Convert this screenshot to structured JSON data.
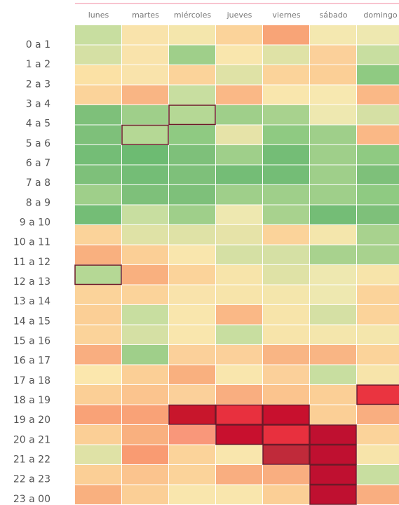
{
  "chart_data": {
    "type": "heatmap",
    "columns": [
      "lunes",
      "martes",
      "miércoles",
      "jueves",
      "viernes",
      "sábado",
      "domingo"
    ],
    "rows": [
      "0 a 1",
      "1 a 2",
      "2 a 3",
      "3 a 4",
      "4 a 5",
      "5 a 6",
      "6 a 7",
      "7 a 8",
      "8 a 9",
      "9 a 10",
      "10 a 11",
      "11 a 12",
      "12 a 13",
      "13 a 14",
      "14 a 15",
      "15 a 16",
      "16 a 17",
      "17 a 18",
      "18 a 19",
      "19 a 20",
      "20 a 21",
      "21 a 22",
      "22 a 23",
      "23 a 00"
    ],
    "cell_colors": [
      [
        "#c8dea0",
        "#f9e3ab",
        "#f4e6ac",
        "#fbd39a",
        "#f8a477",
        "#f4e8b0",
        "#eee8b0"
      ],
      [
        "#d5e0a4",
        "#f9e3ab",
        "#9fcf8a",
        "#f9e6ad",
        "#dfe2a6",
        "#fbd09a",
        "#c8dea0"
      ],
      [
        "#fbe1a5",
        "#f9e3ab",
        "#fbd39a",
        "#dfe2a6",
        "#fbd39a",
        "#fbcf96",
        "#8fca82"
      ],
      [
        "#fbd39a",
        "#f9b584",
        "#c8dea0",
        "#fab886",
        "#f9e6ad",
        "#f7e8b0",
        "#fab886"
      ],
      [
        "#7ec07a",
        "#9fcf8a",
        "#b5d895",
        "#9fcf8a",
        "#a8d28e",
        "#eee8b0",
        "#d5e0a4"
      ],
      [
        "#7ec07a",
        "#b5d895",
        "#8fca82",
        "#e6e3a8",
        "#8fca82",
        "#9fcf8a",
        "#fab886"
      ],
      [
        "#74bd76",
        "#6dbb72",
        "#7ec07a",
        "#9fcf8a",
        "#74bd76",
        "#9fcf8a",
        "#8fca82"
      ],
      [
        "#7ec07a",
        "#74bd76",
        "#7ec07a",
        "#74bd76",
        "#74bd76",
        "#9fcf8a",
        "#7ec07a"
      ],
      [
        "#9fcf8a",
        "#7ec07a",
        "#7ec07a",
        "#9fcf8a",
        "#9fcf8a",
        "#9fcf8a",
        "#8fca82"
      ],
      [
        "#74bd76",
        "#c8dea0",
        "#9fcf8a",
        "#eee8b0",
        "#a8d28e",
        "#74bd76",
        "#7ec07a"
      ],
      [
        "#fbd39a",
        "#dfe2a6",
        "#dfe2a6",
        "#e6e3a8",
        "#fbd39a",
        "#f4e6ac",
        "#a8d28e"
      ],
      [
        "#f9b07f",
        "#fbcf96",
        "#f9e6ad",
        "#d5e0a4",
        "#d5e0a4",
        "#a8d28e",
        "#a8d28e"
      ],
      [
        "#b5d895",
        "#f9b07f",
        "#fbd39a",
        "#f7e4aa",
        "#dfe2a6",
        "#eee8b0",
        "#f7e4aa"
      ],
      [
        "#fbd39a",
        "#fbd39a",
        "#f9e3ab",
        "#f7e4aa",
        "#f4e6ac",
        "#eee8b0",
        "#fbd39a"
      ],
      [
        "#fbcf96",
        "#c8dea0",
        "#f9e6ad",
        "#fab886",
        "#f7e4aa",
        "#d5e0a4",
        "#fbd39a"
      ],
      [
        "#fbd39a",
        "#d5e0a4",
        "#f9e6ad",
        "#c8dea0",
        "#f7e4aa",
        "#f4e6ac",
        "#f4e6ac"
      ],
      [
        "#f9ae80",
        "#9fcf8a",
        "#fbd09a",
        "#fbd09a",
        "#f9b584",
        "#f9b584",
        "#fbd39a"
      ],
      [
        "#fbe7ad",
        "#fbcf96",
        "#f9b07f",
        "#f9e6ad",
        "#fbd09a",
        "#c8dea0",
        "#f7e4aa"
      ],
      [
        "#fbcf96",
        "#fbc48e",
        "#fbd09a",
        "#f9ae80",
        "#fbc48e",
        "#fbcf96",
        "#ea3440"
      ],
      [
        "#f9a277",
        "#f9a277",
        "#c8162c",
        "#e8303e",
        "#c8102e",
        "#fbcf96",
        "#f9ae80"
      ],
      [
        "#fbcf96",
        "#f9b07f",
        "#f9977a",
        "#c8102e",
        "#e8303e",
        "#bf1030",
        "#fbd39a"
      ],
      [
        "#dfe2a6",
        "#f99b72",
        "#fbd39a",
        "#f9e6ad",
        "#c02a3a",
        "#bf1030",
        "#f7e4aa"
      ],
      [
        "#fbcf96",
        "#fbc48e",
        "#fbd39a",
        "#f9ae80",
        "#f9ae80",
        "#bf1030",
        "#c8dea0"
      ],
      [
        "#f9b07f",
        "#fbcf96",
        "#f9e6ad",
        "#f9e6ad",
        "#fbcf96",
        "#bf1030",
        "#f9ae80"
      ]
    ]
  }
}
